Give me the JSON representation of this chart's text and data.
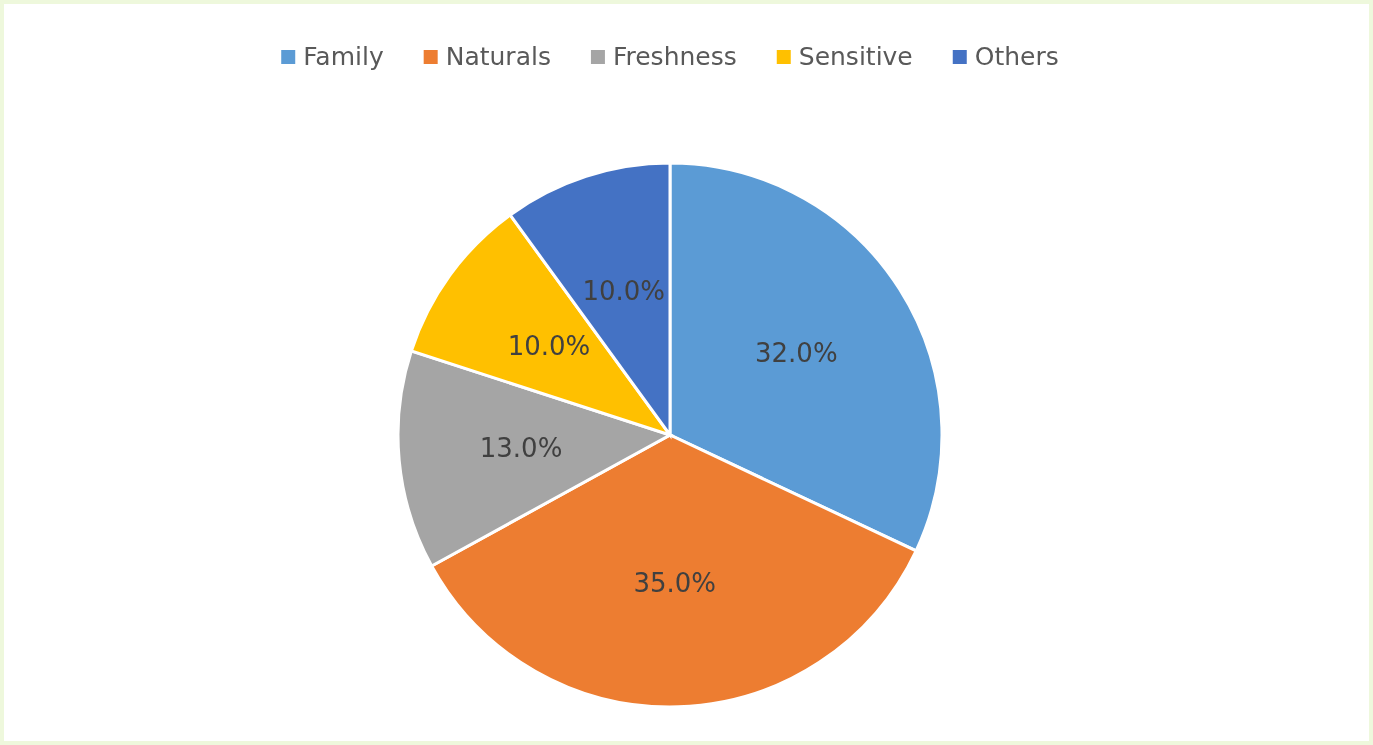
{
  "chart_data": {
    "type": "pie",
    "categories": [
      "Family",
      "Naturals",
      "Freshness",
      "Sensitive",
      "Others"
    ],
    "values": [
      32,
      35,
      13,
      10,
      10
    ],
    "colors": [
      "#5b9bd5",
      "#ed7d31",
      "#a5a5a5",
      "#ffc000",
      "#4472c4"
    ],
    "value_labels": [
      "32.0%",
      "35.0%",
      "13.0%",
      "10.0%",
      "10.0%"
    ],
    "legend": "top"
  }
}
